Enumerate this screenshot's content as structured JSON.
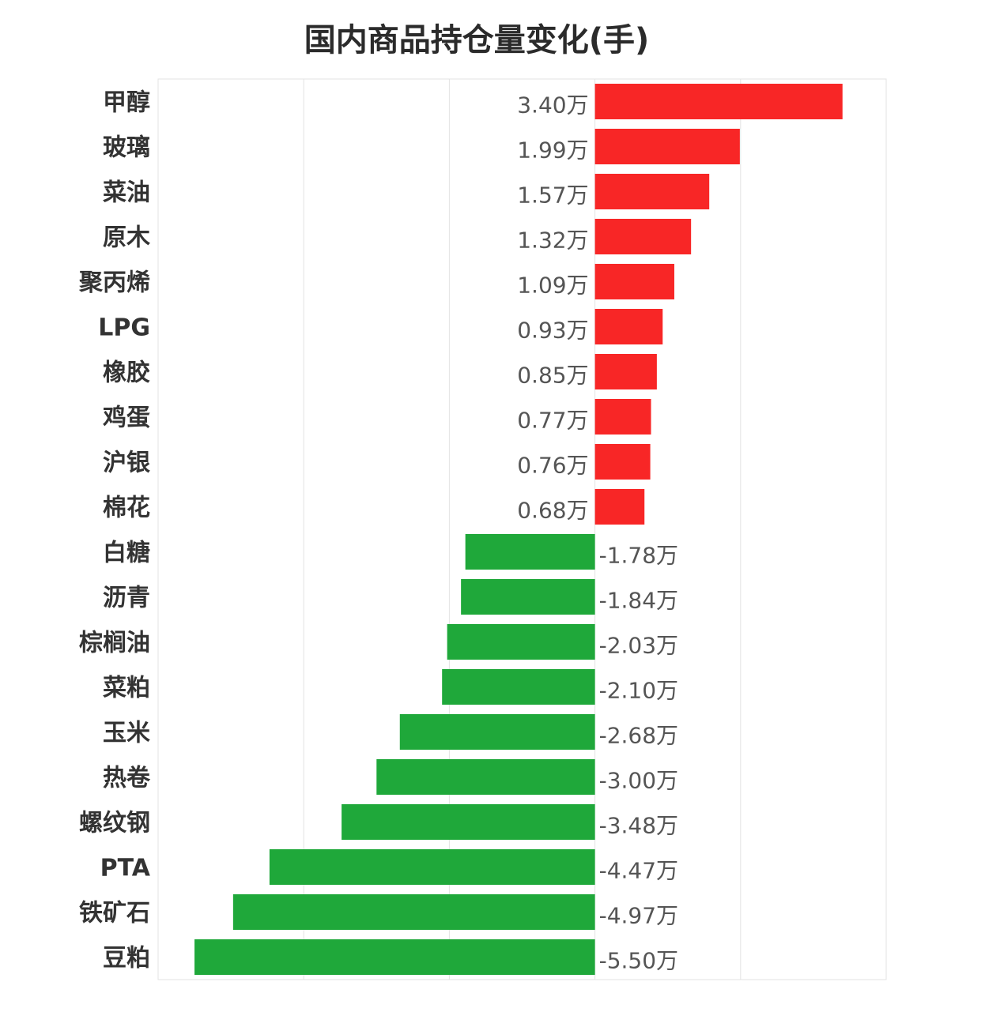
{
  "chart_data": {
    "type": "bar",
    "orientation": "horizontal",
    "title": "国内商品持仓量变化(手)",
    "categories": [
      "甲醇",
      "玻璃",
      "菜油",
      "原木",
      "聚丙烯",
      "LPG",
      "橡胶",
      "鸡蛋",
      "沪银",
      "棉花",
      "白糖",
      "沥青",
      "棕榈油",
      "菜粕",
      "玉米",
      "热卷",
      "螺纹钢",
      "PTA",
      "铁矿石",
      "豆粕"
    ],
    "values": [
      3.4,
      1.99,
      1.57,
      1.32,
      1.09,
      0.93,
      0.85,
      0.77,
      0.76,
      0.68,
      -1.78,
      -1.84,
      -2.03,
      -2.1,
      -2.68,
      -3.0,
      -3.48,
      -4.47,
      -4.97,
      -5.5
    ],
    "value_labels": [
      "3.40万",
      "1.99万",
      "1.57万",
      "1.32万",
      "1.09万",
      "0.93万",
      "0.85万",
      "0.77万",
      "0.76万",
      "0.68万",
      "-1.78万",
      "-1.84万",
      "-2.03万",
      "-2.10万",
      "-2.68万",
      "-3.00万",
      "-3.48万",
      "-4.47万",
      "-4.97万",
      "-5.50万"
    ],
    "unit": "万",
    "xlim": [
      -6,
      4
    ],
    "grid": true,
    "colors": {
      "positive": "#f82626",
      "negative": "#1fa83a",
      "grid": "#e3e3e3"
    }
  }
}
